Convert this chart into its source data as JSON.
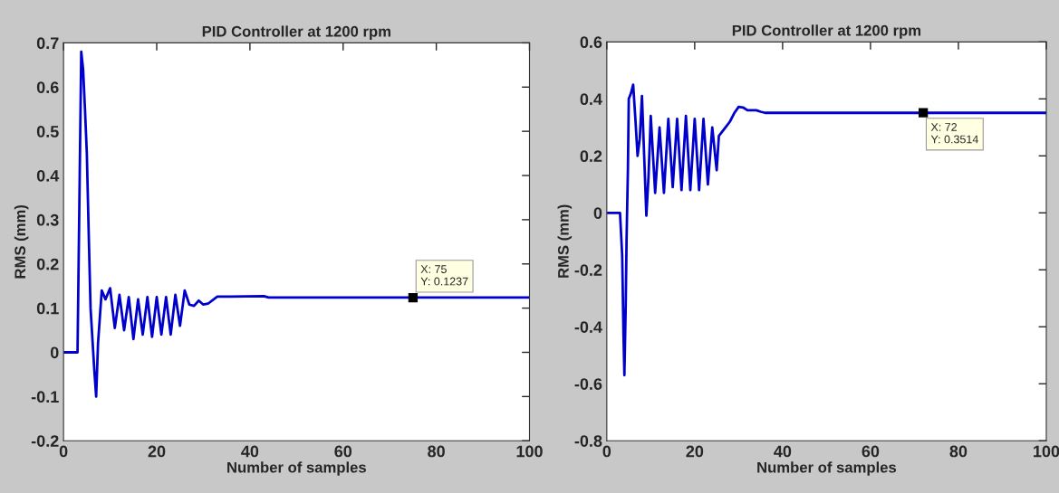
{
  "chart_data": [
    {
      "type": "line",
      "title": "PID Controller at 1200 rpm",
      "xlabel": "Number of samples",
      "ylabel": "RMS (mm)",
      "xlim": [
        0,
        100
      ],
      "xticks": [
        0,
        20,
        40,
        60,
        80,
        100
      ],
      "ylim": [
        -0.2,
        0.7
      ],
      "yticks": [
        -0.2,
        -0.1,
        0,
        0.1,
        0.2,
        0.3,
        0.4,
        0.5,
        0.6,
        0.7
      ],
      "series": [
        {
          "color": "#0000cc",
          "x": [
            0,
            1,
            2,
            3,
            3.2,
            3.4,
            3.6,
            3.8,
            4.2,
            4.6,
            5,
            5.4,
            5.8,
            6.2,
            6.6,
            7,
            7.4,
            7.8,
            8.2,
            9,
            10,
            11,
            12,
            13,
            14,
            15,
            16,
            17,
            18,
            19,
            20,
            21,
            22,
            23,
            24,
            25,
            26,
            27,
            28,
            29,
            30,
            31,
            33,
            43,
            44,
            100
          ],
          "values": [
            0,
            0,
            0,
            0,
            0.17,
            0.34,
            0.51,
            0.68,
            0.64,
            0.55,
            0.45,
            0.27,
            0.1,
            0.03,
            -0.04,
            -0.1,
            0.02,
            0.08,
            0.14,
            0.12,
            0.145,
            0.055,
            0.13,
            0.05,
            0.125,
            0.03,
            0.12,
            0.04,
            0.125,
            0.035,
            0.125,
            0.04,
            0.125,
            0.04,
            0.13,
            0.06,
            0.14,
            0.108,
            0.105,
            0.117,
            0.108,
            0.11,
            0.126,
            0.127,
            0.124,
            0.124
          ]
        },
        {
          "type": "scatter",
          "color": "#000000",
          "marker": "square",
          "x": [
            75
          ],
          "values": [
            0.1237
          ]
        }
      ],
      "annotations": [
        {
          "text": "X: 75\nY: 0.1237",
          "x": 75,
          "y": 0.1237
        }
      ],
      "grid": false
    },
    {
      "type": "line",
      "title": "PID Controller at 1200 rpm",
      "xlabel": "Number of samples",
      "ylabel": "RMS (mm)",
      "xlim": [
        0,
        100
      ],
      "xticks": [
        0,
        20,
        40,
        60,
        80,
        100
      ],
      "ylim": [
        -0.8,
        0.6
      ],
      "yticks": [
        -0.8,
        -0.6,
        -0.4,
        -0.2,
        0,
        0.2,
        0.4,
        0.6
      ],
      "series": [
        {
          "color": "#0000cc",
          "x": [
            0,
            1,
            2,
            3,
            3.5,
            3.8,
            4,
            4.3,
            4.5,
            4.8,
            5,
            5.5,
            6,
            6.5,
            7,
            7.5,
            8,
            8.5,
            9,
            9.5,
            10,
            11,
            12,
            13,
            14,
            15,
            16,
            17,
            18,
            19,
            20,
            21,
            22,
            23,
            24,
            25,
            25.5,
            26,
            27,
            28,
            29,
            30,
            31,
            32,
            34,
            35,
            36,
            100
          ],
          "values": [
            0,
            0,
            0,
            0,
            -0.15,
            -0.43,
            -0.57,
            -0.33,
            -0.09,
            0.15,
            0.4,
            0.42,
            0.45,
            0.33,
            0.2,
            0.26,
            0.41,
            0.2,
            -0.01,
            0.13,
            0.34,
            0.07,
            0.3,
            0.07,
            0.33,
            0.09,
            0.33,
            0.08,
            0.34,
            0.08,
            0.33,
            0.08,
            0.33,
            0.1,
            0.3,
            0.15,
            0.27,
            0.28,
            0.3,
            0.32,
            0.35,
            0.372,
            0.37,
            0.36,
            0.36,
            0.355,
            0.351,
            0.351
          ]
        },
        {
          "type": "scatter",
          "color": "#000000",
          "marker": "square",
          "x": [
            72
          ],
          "values": [
            0.3514
          ]
        }
      ],
      "annotations": [
        {
          "text": "X: 72\nY: 0.3514",
          "x": 72,
          "y": 0.3514
        }
      ],
      "grid": false
    }
  ]
}
